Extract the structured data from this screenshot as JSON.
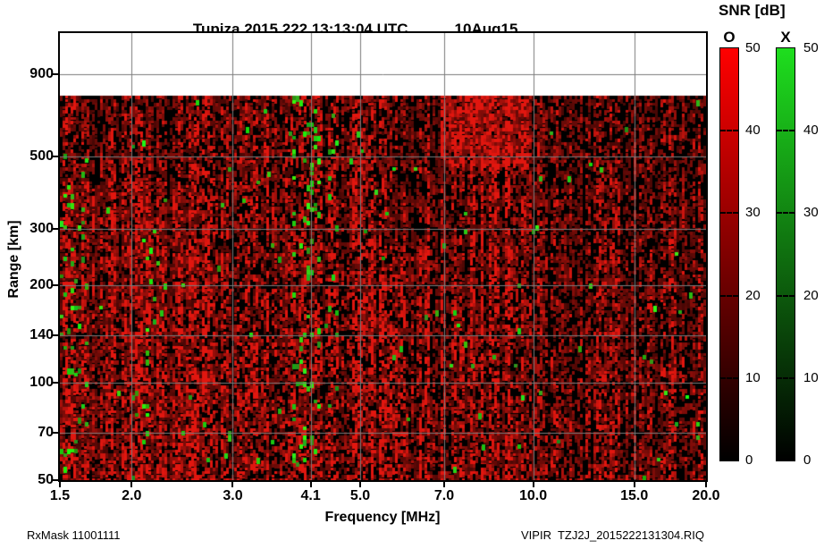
{
  "header": {
    "title": "Tupiza 2015 222 13:13:04 UTC",
    "date": "10Aug15"
  },
  "footer": {
    "left": "RxMask 11001111",
    "right": "VIPIR  TZJ2J_2015222131304.RIQ"
  },
  "colorbar": {
    "title": "SNR [dB]",
    "min": 0,
    "max": 50,
    "tick_values": [
      0,
      10,
      20,
      30,
      40,
      50
    ],
    "tick_labels": [
      "0",
      "10",
      "20",
      "30",
      "40",
      "50"
    ],
    "bars": [
      {
        "label": "O",
        "color_top": "#ff0000",
        "color_bottom": "#000000"
      },
      {
        "label": "X",
        "color_top": "#1ede1e",
        "color_bottom": "#000000"
      }
    ]
  },
  "chart_data": {
    "type": "heatmap",
    "title": "Tupiza 2015 222 13:13:04 UTC 10Aug15",
    "xlabel": "Frequency [MHz]",
    "ylabel": "Range [km]",
    "x_scale": "log",
    "x_range": [
      1.5,
      20.0
    ],
    "x_ticks": [
      1.5,
      2.0,
      3.0,
      4.1,
      5.0,
      7.0,
      10.0,
      15.0,
      20.0
    ],
    "x_tick_labels": [
      "1.5",
      "2.0",
      "3.0",
      "4.1",
      "5.0",
      "7.0",
      "10.0",
      "15.0",
      "20.0"
    ],
    "y_scale": "log",
    "y_range": [
      50,
      1206
    ],
    "y_ticks": [
      50,
      70,
      100,
      140,
      200,
      300,
      500,
      900
    ],
    "y_tick_labels": [
      "50",
      "70",
      "100",
      "140",
      "200",
      "300",
      "500",
      "900"
    ],
    "grid": true,
    "grid_color": "#7b7b7b",
    "value_label": "SNR [dB]",
    "value_range": [
      0,
      50
    ],
    "data_top_km": 772,
    "background_above_data": "#ffffff",
    "background_data": "#000000",
    "polarizations": {
      "O": "red",
      "X": "green"
    },
    "noise": {
      "seed": 1337,
      "green_global_density": 0.006,
      "green_features": [
        {
          "f": [
            1.5,
            1.68
          ],
          "km": [
            55,
            520
          ],
          "p": 0.085
        },
        {
          "f": [
            2.02,
            2.32
          ],
          "km": [
            55,
            330
          ],
          "p": 0.05
        },
        {
          "f": [
            3.82,
            4.3
          ],
          "km": [
            55,
            790
          ],
          "p": 0.115
        },
        {
          "f": [
            4.3,
            4.75
          ],
          "km": [
            90,
            700
          ],
          "p": 0.028
        },
        {
          "f": [
            5.4,
            6.4
          ],
          "km": [
            300,
            770
          ],
          "p": 0.02
        },
        {
          "f": [
            8.8,
            10.6
          ],
          "km": [
            420,
            770
          ],
          "p": 0.012
        }
      ],
      "red_features": [
        {
          "f": [
            6.9,
            9.8
          ],
          "km": [
            470,
            780
          ],
          "boost": 0.62
        },
        {
          "f": [
            1.5,
            2.6
          ],
          "km": [
            50,
            420
          ],
          "boost": 0.2
        },
        {
          "f": [
            10.5,
            20.0
          ],
          "km": [
            50,
            780
          ],
          "boost": -0.25
        },
        {
          "f": [
            5.3,
            6.8
          ],
          "km": [
            260,
            780
          ],
          "boost": -0.28
        }
      ]
    }
  }
}
